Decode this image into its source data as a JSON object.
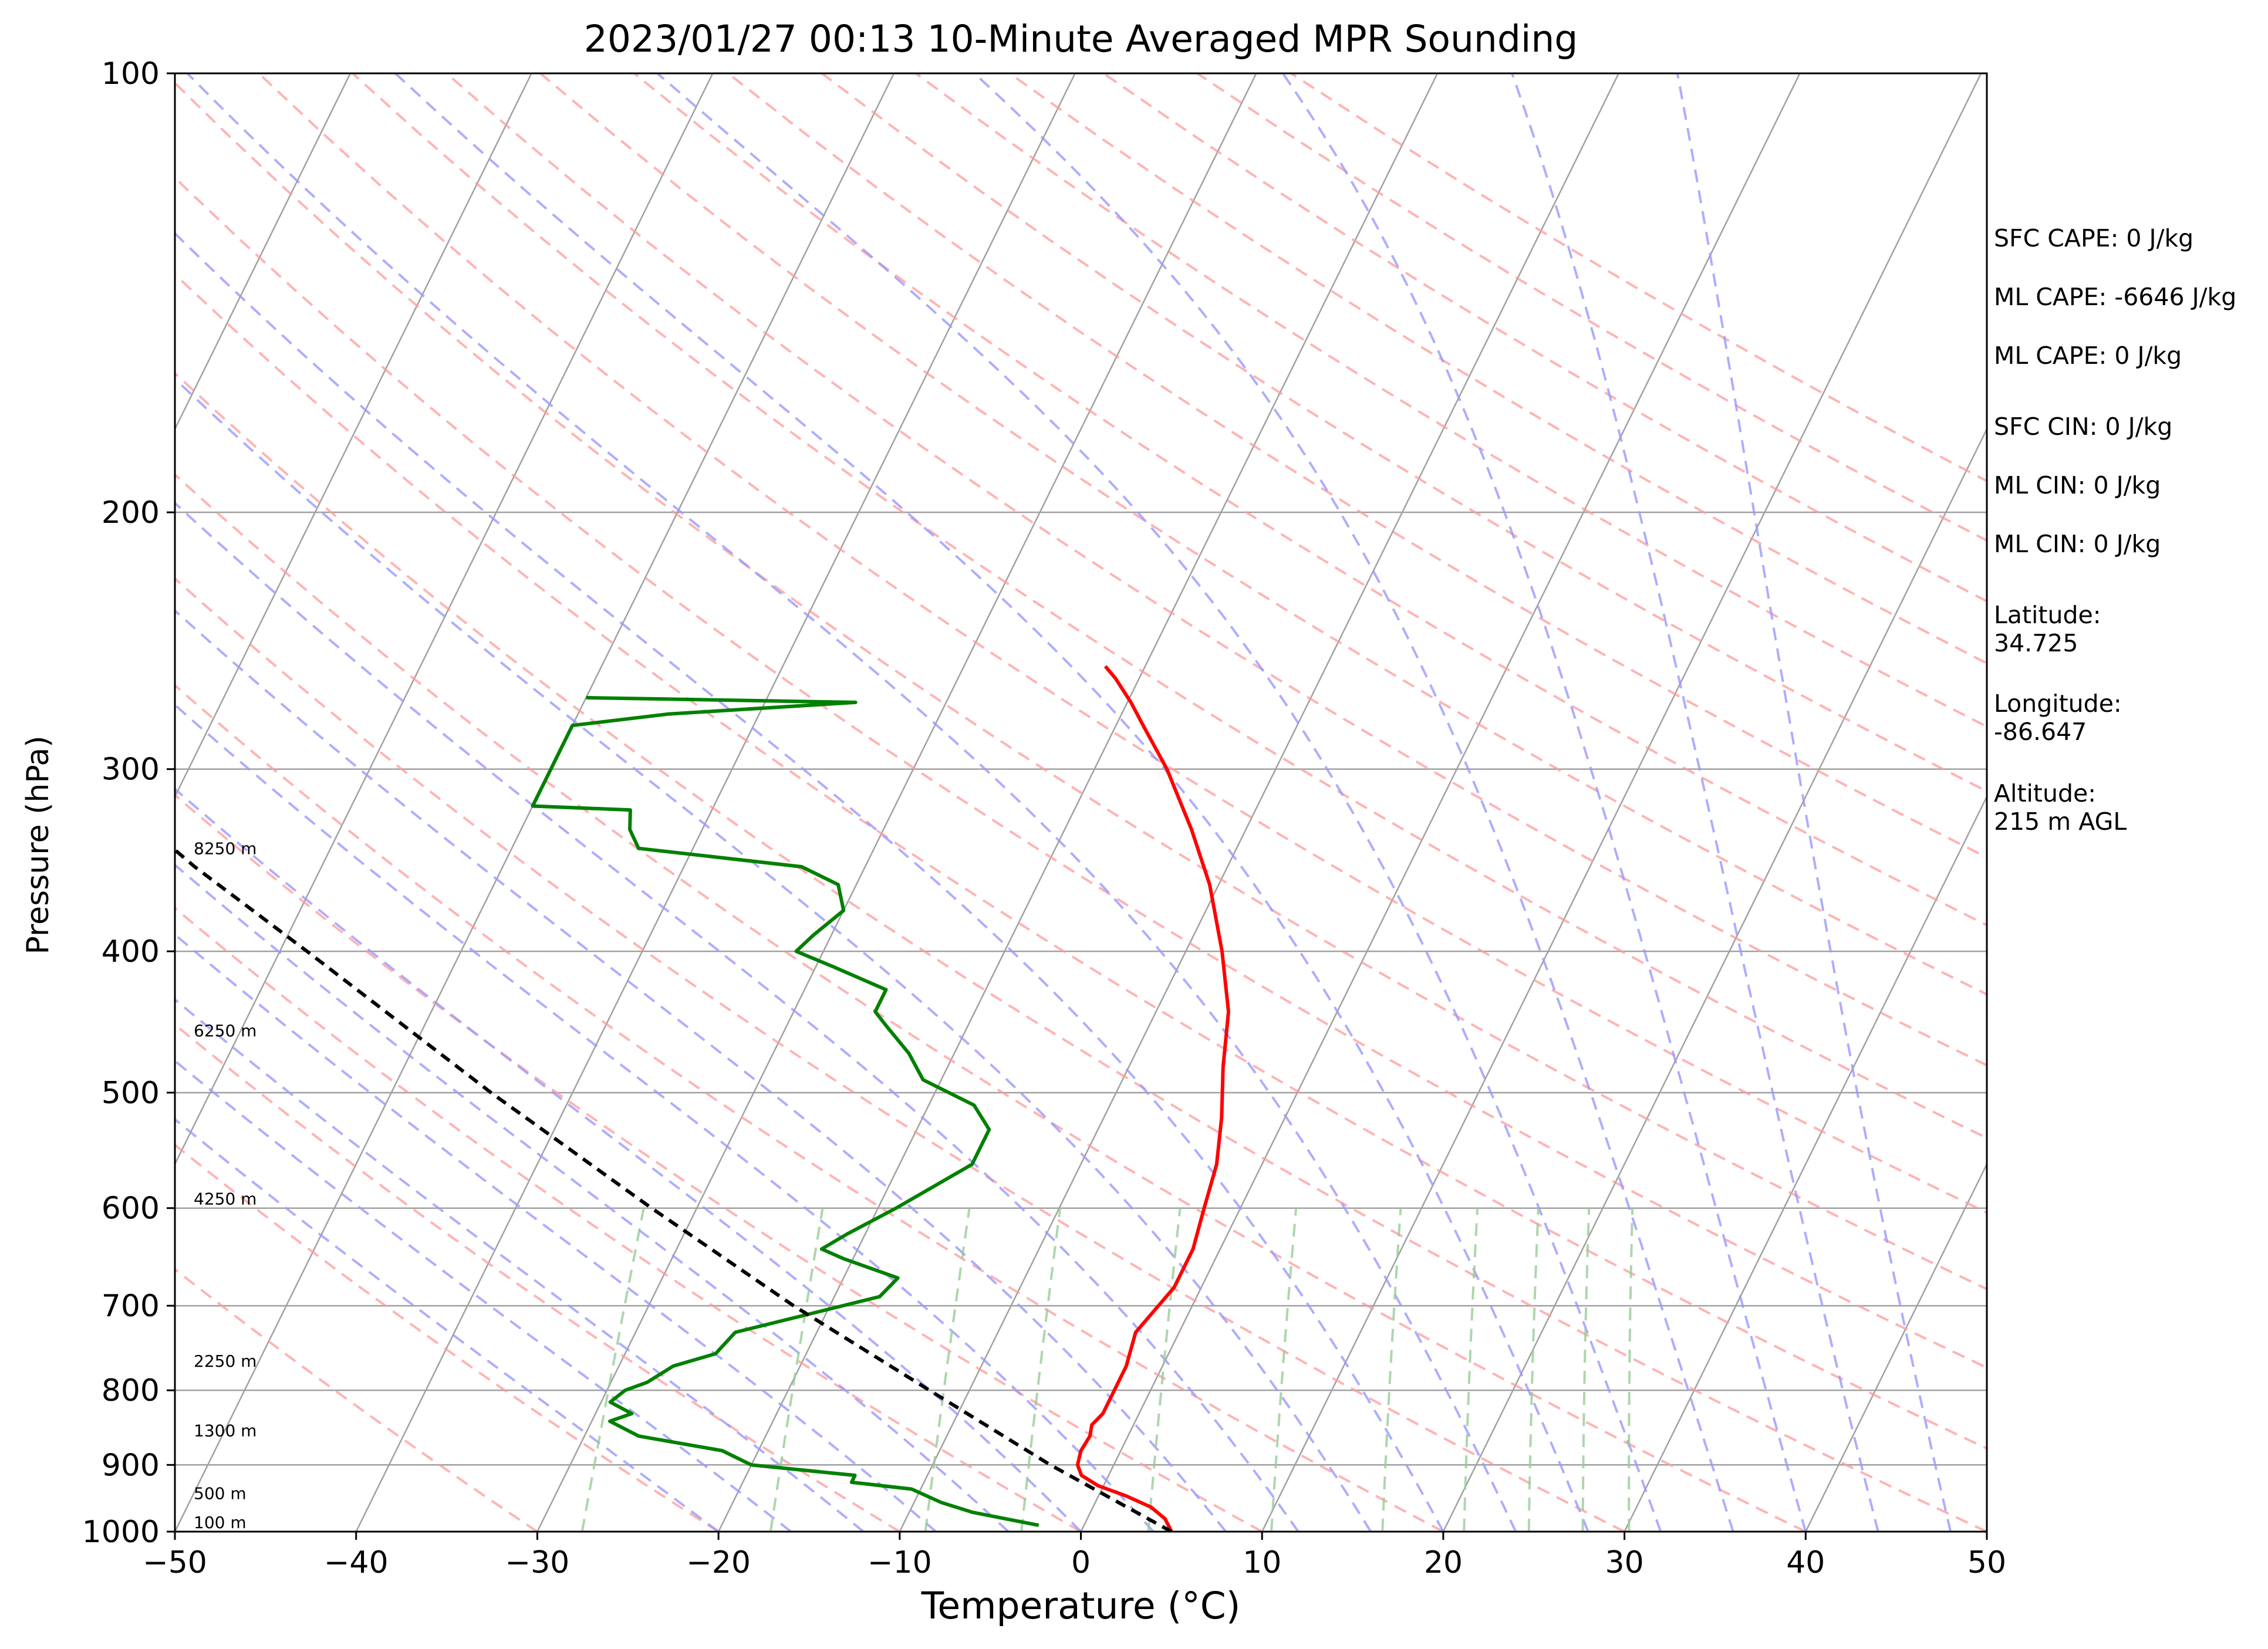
{
  "chart_data": {
    "type": "line",
    "title": "2023/01/27 00:13 10-Minute Averaged MPR Sounding",
    "xlabel": "Temperature (°C)",
    "ylabel": "Pressure (hPa)",
    "xlim": [
      -50,
      50
    ],
    "ylim": [
      1000,
      100
    ],
    "y_scale": "log",
    "x_ticks": [
      "−50",
      "−40",
      "−30",
      "−20",
      "−10",
      "0",
      "10",
      "20",
      "30",
      "40",
      "50"
    ],
    "y_ticks": [
      "100",
      "200",
      "300",
      "400",
      "500",
      "600",
      "700",
      "800",
      "900",
      "1000"
    ],
    "colors": {
      "temperature": "#ff0000",
      "dewpoint": "#008000",
      "parcel": "#000000",
      "isotherm": "#a0a0a0",
      "dry_adiabat": "#ff9999",
      "moist_adiabat": "#9999ff",
      "mixing_ratio": "#99cc99"
    },
    "series": [
      {
        "role": "temperature",
        "points": [
          {
            "p": 1000,
            "t": 5.0
          },
          {
            "p": 980,
            "t": 4.3
          },
          {
            "p": 962,
            "t": 3.2
          },
          {
            "p": 945,
            "t": 1.5
          },
          {
            "p": 930,
            "t": -0.3
          },
          {
            "p": 915,
            "t": -1.5
          },
          {
            "p": 900,
            "t": -2.0
          },
          {
            "p": 880,
            "t": -2.2
          },
          {
            "p": 860,
            "t": -2.1
          },
          {
            "p": 845,
            "t": -2.3
          },
          {
            "p": 830,
            "t": -2.0
          },
          {
            "p": 800,
            "t": -2.0
          },
          {
            "p": 770,
            "t": -2.0
          },
          {
            "p": 730,
            "t": -2.4
          },
          {
            "p": 680,
            "t": -1.5
          },
          {
            "p": 640,
            "t": -1.5
          },
          {
            "p": 600,
            "t": -2.0
          },
          {
            "p": 560,
            "t": -2.5
          },
          {
            "p": 520,
            "t": -3.5
          },
          {
            "p": 480,
            "t": -4.8
          },
          {
            "p": 440,
            "t": -6.0
          },
          {
            "p": 400,
            "t": -8.0
          },
          {
            "p": 360,
            "t": -10.5
          },
          {
            "p": 330,
            "t": -13.0
          },
          {
            "p": 300,
            "t": -16.0
          },
          {
            "p": 280,
            "t": -18.5
          },
          {
            "p": 270,
            "t": -19.8
          },
          {
            "p": 260,
            "t": -21.3
          },
          {
            "p": 255,
            "t": -22.2
          }
        ]
      },
      {
        "role": "dewpoint",
        "points": [
          {
            "p": 990,
            "t": -2.5
          },
          {
            "p": 970,
            "t": -6.5
          },
          {
            "p": 955,
            "t": -8.5
          },
          {
            "p": 935,
            "t": -10.5
          },
          {
            "p": 925,
            "t": -14.0
          },
          {
            "p": 915,
            "t": -14.0
          },
          {
            "p": 900,
            "t": -20.0
          },
          {
            "p": 880,
            "t": -22.0
          },
          {
            "p": 860,
            "t": -27.0
          },
          {
            "p": 840,
            "t": -29.0
          },
          {
            "p": 830,
            "t": -28.0
          },
          {
            "p": 815,
            "t": -29.5
          },
          {
            "p": 800,
            "t": -29.0
          },
          {
            "p": 790,
            "t": -28.0
          },
          {
            "p": 770,
            "t": -27.0
          },
          {
            "p": 755,
            "t": -25.0
          },
          {
            "p": 730,
            "t": -24.5
          },
          {
            "p": 690,
            "t": -17.5
          },
          {
            "p": 670,
            "t": -17.0
          },
          {
            "p": 650,
            "t": -20.5
          },
          {
            "p": 640,
            "t": -22.0
          },
          {
            "p": 625,
            "t": -21.0
          },
          {
            "p": 600,
            "t": -19.0
          },
          {
            "p": 560,
            "t": -16.0
          },
          {
            "p": 530,
            "t": -16.0
          },
          {
            "p": 510,
            "t": -17.5
          },
          {
            "p": 490,
            "t": -21.0
          },
          {
            "p": 470,
            "t": -22.5
          },
          {
            "p": 450,
            "t": -24.5
          },
          {
            "p": 440,
            "t": -25.5
          },
          {
            "p": 425,
            "t": -25.5
          },
          {
            "p": 410,
            "t": -29.0
          },
          {
            "p": 400,
            "t": -31.5
          },
          {
            "p": 390,
            "t": -31.0
          },
          {
            "p": 375,
            "t": -30.0
          },
          {
            "p": 360,
            "t": -31.0
          },
          {
            "p": 350,
            "t": -33.5
          },
          {
            "p": 340,
            "t": -43.0
          },
          {
            "p": 330,
            "t": -44.0
          },
          {
            "p": 320,
            "t": -44.5
          },
          {
            "p": 318,
            "t": -50.0
          },
          {
            "p": 280,
            "t": -50.0
          },
          {
            "p": 275,
            "t": -45.0
          },
          {
            "p": 270,
            "t": -35.0
          },
          {
            "p": 268,
            "t": -50.0
          }
        ]
      },
      {
        "role": "parcel",
        "points": [
          {
            "p": 1000,
            "t": 5.0
          },
          {
            "p": 900,
            "t": -3.5
          },
          {
            "p": 800,
            "t": -12.2
          },
          {
            "p": 700,
            "t": -22.0
          },
          {
            "p": 600,
            "t": -32.5
          },
          {
            "p": 500,
            "t": -44.5
          },
          {
            "p": 400,
            "t": -58.5
          },
          {
            "p": 350,
            "t": -67.0
          },
          {
            "p": 300,
            "t": -76.0
          },
          {
            "p": 275,
            "t": -81.0
          }
        ]
      }
    ],
    "height_labels": [
      {
        "p": 1000,
        "label": "100 m"
      },
      {
        "p": 955,
        "label": "500 m"
      },
      {
        "p": 865,
        "label": "1300 m"
      },
      {
        "p": 775,
        "label": "2250 m"
      },
      {
        "p": 600,
        "label": "4250 m"
      },
      {
        "p": 460,
        "label": "6250 m"
      },
      {
        "p": 345,
        "label": "8250 m"
      }
    ]
  },
  "side_panel": {
    "sfc_cape": "SFC CAPE: 0 J/kg",
    "ml_cape_1": "ML CAPE: -6646 J/kg",
    "ml_cape_2": "ML CAPE: 0 J/kg",
    "sfc_cin": "SFC CIN: 0 J/kg",
    "ml_cin_1": "ML CIN: 0 J/kg",
    "ml_cin_2": "ML CIN: 0 J/kg",
    "latitude": "Latitude:\n34.725",
    "longitude": "Longitude:\n-86.647",
    "altitude": "Altitude:\n215 m AGL"
  }
}
